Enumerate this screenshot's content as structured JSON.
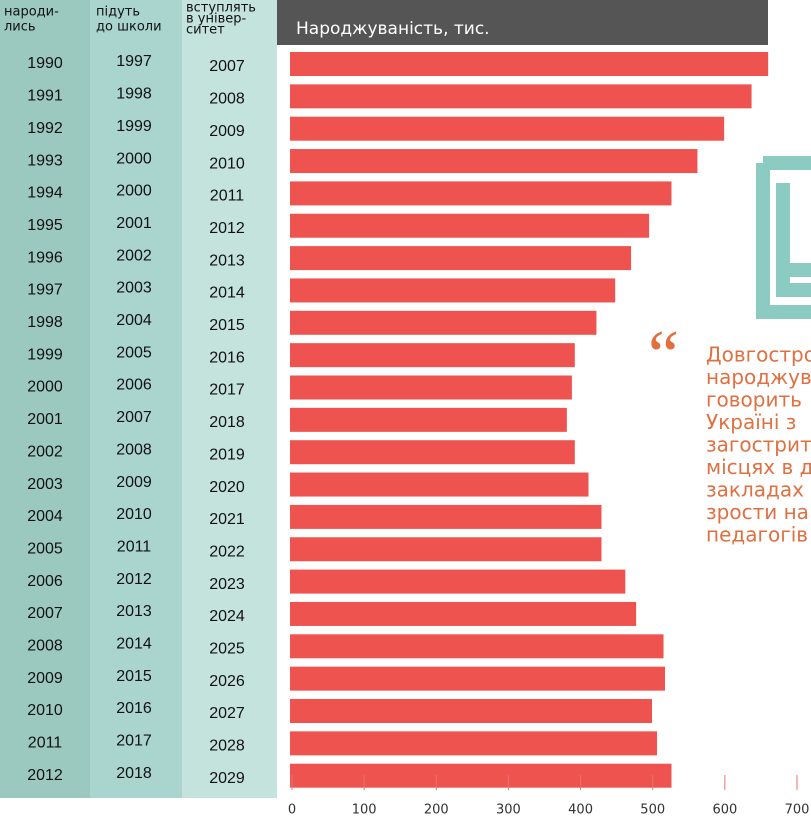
{
  "chart_data": {
    "type": "bar",
    "orientation": "horizontal",
    "title": "Народжуваність, тис.",
    "column_headers": [
      [
        "народи-",
        "лись"
      ],
      [
        "підуть",
        "до школи"
      ],
      [
        "вступлять",
        "в універ-",
        "ситет"
      ]
    ],
    "categories": [
      "1990",
      "1991",
      "1992",
      "1993",
      "1994",
      "1995",
      "1996",
      "1997",
      "1998",
      "1999",
      "2000",
      "2001",
      "2002",
      "2003",
      "2004",
      "2005",
      "2006",
      "2007",
      "2008",
      "2009",
      "2010",
      "2011",
      "2012"
    ],
    "school_years": [
      "1997",
      "1998",
      "1999",
      "2000",
      "2000",
      "2001",
      "2002",
      "2003",
      "2004",
      "2005",
      "2006",
      "2007",
      "2008",
      "2009",
      "2010",
      "2011",
      "2012",
      "2013",
      "2014",
      "2015",
      "2016",
      "2017",
      "2018"
    ],
    "university_years": [
      "2007",
      "2008",
      "2009",
      "2010",
      "2011",
      "2012",
      "2013",
      "2014",
      "2015",
      "2016",
      "2017",
      "2018",
      "2019",
      "2020",
      "2021",
      "2022",
      "2023",
      "2024",
      "2025",
      "2026",
      "2027",
      "2028",
      "2029"
    ],
    "values": [
      660,
      637,
      599,
      562,
      526,
      495,
      470,
      448,
      422,
      392,
      388,
      381,
      392,
      411,
      429,
      429,
      462,
      477,
      515,
      517,
      499,
      506,
      526
    ],
    "color": "#ef5350",
    "xlim": [
      0,
      700
    ],
    "xticks": [
      0,
      100,
      200,
      300,
      400,
      500,
      600,
      700
    ]
  },
  "quote": {
    "mark": "“",
    "lines": [
      "Довгостро",
      "народжув",
      "говорить",
      "Україні з",
      "загострит",
      "місцях в д",
      "закладах",
      "зрости на",
      "педагогів"
    ]
  }
}
